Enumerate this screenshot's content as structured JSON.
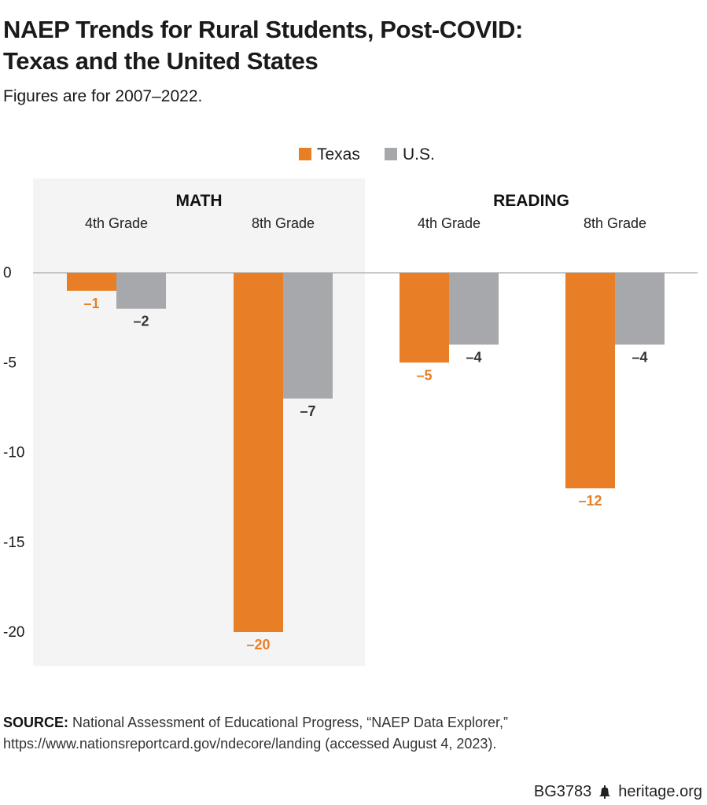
{
  "header": {
    "title_line1": "NAEP Trends for Rural Students, Post-COVID:",
    "title_line2": "Texas and the United States",
    "subtitle": "Figures are for 2007–2022."
  },
  "colors": {
    "texas": "#e87f27",
    "us": "#a7a8ab",
    "panel_bg": "#f4f4f4"
  },
  "chart_data": {
    "type": "bar",
    "title": "NAEP Trends for Rural Students, Post-COVID: Texas and the United States",
    "subtitle": "Figures are for 2007–2022.",
    "legend": {
      "position": "top-center",
      "entries": [
        "Texas",
        "U.S."
      ]
    },
    "panels": [
      {
        "name": "MATH",
        "shaded": true,
        "categories": [
          "4th Grade",
          "8th Grade"
        ],
        "series": [
          {
            "name": "Texas",
            "values": [
              -1,
              -20
            ],
            "labels": [
              "–1",
              "–20"
            ]
          },
          {
            "name": "U.S.",
            "values": [
              -2,
              -7
            ],
            "labels": [
              "–2",
              "–7"
            ]
          }
        ]
      },
      {
        "name": "READING",
        "shaded": false,
        "categories": [
          "4th Grade",
          "8th Grade"
        ],
        "series": [
          {
            "name": "Texas",
            "values": [
              -5,
              -12
            ],
            "labels": [
              "–5",
              "–12"
            ]
          },
          {
            "name": "U.S.",
            "values": [
              -4,
              -4
            ],
            "labels": [
              "–4",
              "–4"
            ]
          }
        ]
      }
    ],
    "y_ticks": [
      0,
      -5,
      -10,
      -15,
      -20
    ],
    "y_tick_labels": [
      "0",
      "-5",
      "-10",
      "-15",
      "-20"
    ],
    "ylim": [
      -22,
      0
    ],
    "grid": false
  },
  "source": {
    "label": "SOURCE:",
    "text": "National Assessment of Educational Progress, “NAEP Data Explorer,” https://www.nationsreportcard.gov/ndecore/landing (accessed August 4, 2023)."
  },
  "footer": {
    "code": "BG3783",
    "site": "heritage.org"
  }
}
